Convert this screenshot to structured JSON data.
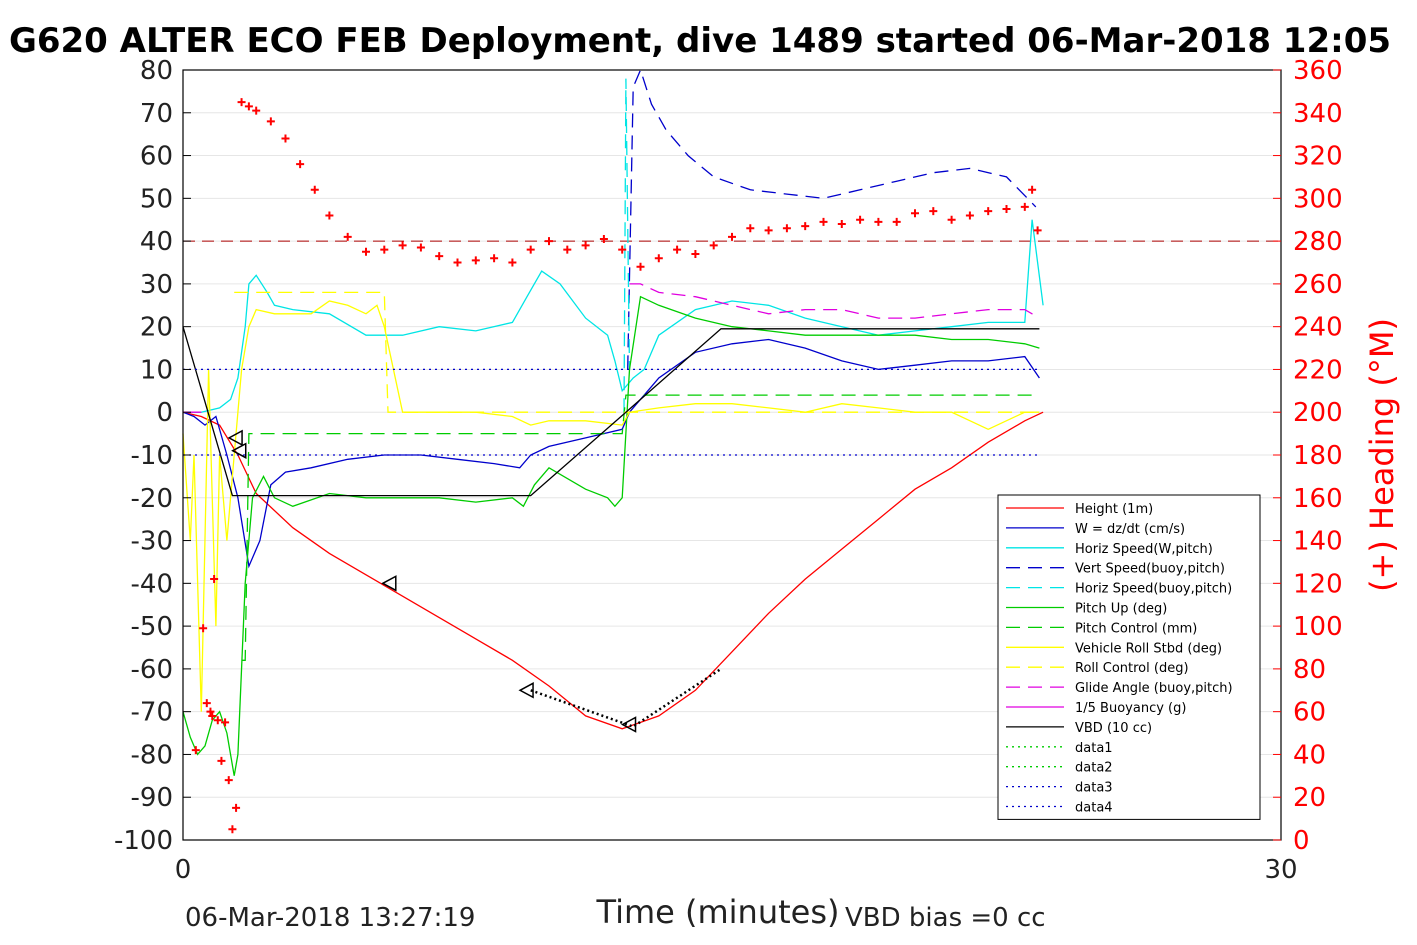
{
  "chart_data": {
    "type": "line",
    "title": "G620 ALTER ECO FEB Deployment, dive 1489 started 06-Mar-2018 12:05",
    "xlabel": "Time (minutes)",
    "ylabel_right": "(+) Heading (°M)",
    "xlim": [
      0,
      30
    ],
    "ylim_left": [
      -100,
      80
    ],
    "ylim_right": [
      0,
      360
    ],
    "x_ticks": [
      "0",
      "30"
    ],
    "y_ticks_left": [
      "80",
      "70",
      "60",
      "50",
      "40",
      "30",
      "20",
      "10",
      "0",
      "-10",
      "-20",
      "-30",
      "-40",
      "-50",
      "-60",
      "-70",
      "-80",
      "-90",
      "-100"
    ],
    "y_ticks_right": [
      "360",
      "340",
      "320",
      "300",
      "280",
      "260",
      "240",
      "220",
      "200",
      "180",
      "160",
      "140",
      "120",
      "100",
      "80",
      "60",
      "40",
      "20",
      "0"
    ],
    "footer_left": "06-Mar-2018 13:27:19",
    "footer_right": "VBD bias =0 cc",
    "colors": {
      "height": "#ff0000",
      "w": "#0000cc",
      "horiz": "#00e5e5",
      "pitch": "#00cc00",
      "roll": "#ffff00",
      "glide": "#e000e0",
      "vbd": "#000000",
      "heading": "#ff0000"
    },
    "legend": [
      {
        "label": "Height (1m)",
        "color": "#ff0000",
        "style": "solid"
      },
      {
        "label": "W = dz/dt (cm/s)",
        "color": "#0000cc",
        "style": "solid"
      },
      {
        "label": "Horiz Speed(W,pitch)",
        "color": "#00e5e5",
        "style": "solid"
      },
      {
        "label": "Vert Speed(buoy,pitch)",
        "color": "#0000cc",
        "style": "dashed"
      },
      {
        "label": "Horiz Speed(buoy,pitch)",
        "color": "#00e5e5",
        "style": "dashed"
      },
      {
        "label": "Pitch Up (deg)",
        "color": "#00cc00",
        "style": "solid"
      },
      {
        "label": "Pitch Control (mm)",
        "color": "#00cc00",
        "style": "dashed"
      },
      {
        "label": "Vehicle Roll Stbd (deg)",
        "color": "#ffff00",
        "style": "solid"
      },
      {
        "label": "Roll Control (deg)",
        "color": "#ffff00",
        "style": "dashed"
      },
      {
        "label": "Glide Angle (buoy,pitch)",
        "color": "#e000e0",
        "style": "dashed"
      },
      {
        "label": "1/5 Buoyancy (g)",
        "color": "#e000e0",
        "style": "solid"
      },
      {
        "label": "VBD (10 cc)",
        "color": "#000000",
        "style": "solid"
      },
      {
        "label": "data1",
        "color": "#00cc00",
        "style": "dotted"
      },
      {
        "label": "data2",
        "color": "#00cc00",
        "style": "dotted"
      },
      {
        "label": "data3",
        "color": "#0000cc",
        "style": "dotted"
      },
      {
        "label": "data4",
        "color": "#0000cc",
        "style": "dotted"
      }
    ],
    "series": [
      {
        "name": "Height (1m)",
        "x": [
          0,
          0.5,
          1,
          1.5,
          2,
          3,
          4,
          5,
          6,
          7,
          8,
          9,
          10,
          11,
          12,
          13,
          14,
          15,
          16,
          17,
          18,
          19,
          20,
          21,
          22,
          23,
          23.5
        ],
        "y": [
          0,
          -1,
          -3,
          -10,
          -19,
          -27,
          -33,
          -38,
          -43,
          -48,
          -53,
          -58,
          -64,
          -71,
          -74,
          -71,
          -65,
          -56,
          -47,
          -39,
          -32,
          -25,
          -18,
          -13,
          -7,
          -2,
          0
        ]
      },
      {
        "name": "W = dz/dt (cm/s)",
        "x": [
          0,
          0.3,
          0.6,
          0.9,
          1.2,
          1.5,
          1.8,
          2.1,
          2.4,
          2.8,
          3.5,
          4.5,
          5.5,
          6.5,
          7.5,
          8.5,
          9.2,
          9.5,
          10,
          11,
          12,
          12.2,
          12.6,
          13,
          14,
          15,
          16,
          17,
          18,
          19,
          20,
          21,
          22,
          23,
          23.4
        ],
        "y": [
          0,
          -1,
          -3,
          -1,
          -10,
          -20,
          -36,
          -30,
          -17,
          -14,
          -13,
          -11,
          -10,
          -10,
          -11,
          -12,
          -13,
          -10,
          -8,
          -6,
          -4,
          0,
          4,
          8,
          14,
          16,
          17,
          15,
          12,
          10,
          11,
          12,
          12,
          13,
          8
        ]
      },
      {
        "name": "Horiz Speed(W,pitch)",
        "x": [
          0,
          0.5,
          1,
          1.3,
          1.5,
          1.7,
          1.8,
          2,
          2.3,
          2.5,
          3,
          4,
          5,
          6,
          7,
          8,
          9,
          9.4,
          9.8,
          10.3,
          11,
          11.6,
          11.8,
          12,
          12.3,
          12.6,
          13,
          14,
          15,
          16,
          17,
          18,
          19,
          20,
          21,
          22,
          23,
          23.2,
          23.5
        ],
        "y": [
          0,
          0,
          1,
          3,
          8,
          20,
          30,
          32,
          28,
          25,
          24,
          23,
          18,
          18,
          20,
          19,
          21,
          27,
          33,
          30,
          22,
          18,
          12,
          5,
          8,
          10,
          18,
          24,
          26,
          25,
          22,
          20,
          18,
          19,
          20,
          21,
          21,
          45,
          25
        ]
      },
      {
        "name": "Vert Speed(buoy,pitch)",
        "x": [
          12.15,
          12.3,
          12.5,
          12.8,
          13.2,
          13.8,
          14.5,
          15.5,
          16.5,
          17.5,
          18.5,
          19.5,
          20.5,
          21.5,
          22.5,
          23.3
        ],
        "y": [
          10,
          76,
          80,
          72,
          66,
          60,
          55,
          52,
          51,
          50,
          52,
          54,
          56,
          57,
          55,
          48
        ]
      },
      {
        "name": "Horiz Speed(buoy,pitch)",
        "x": [
          12.05,
          12.1,
          12.2
        ],
        "y": [
          0,
          78,
          10
        ]
      },
      {
        "name": "Pitch Up (deg)",
        "x": [
          0,
          0.2,
          0.4,
          0.6,
          0.8,
          1,
          1.2,
          1.4,
          1.5,
          1.7,
          1.9,
          2.2,
          2.5,
          3,
          4,
          5,
          6,
          7,
          8,
          9,
          9.3,
          9.6,
          10,
          11,
          11.6,
          11.8,
          12,
          12.2,
          12.5,
          13,
          14,
          15,
          16,
          17,
          18,
          19,
          20,
          21,
          22,
          23,
          23.4
        ],
        "y": [
          -70,
          -76,
          -80,
          -78,
          -72,
          -70,
          -75,
          -85,
          -80,
          -40,
          -20,
          -15,
          -20,
          -22,
          -19,
          -20,
          -20,
          -20,
          -21,
          -20,
          -22,
          -17,
          -13,
          -18,
          -20,
          -22,
          -20,
          10,
          27,
          25,
          22,
          20,
          19,
          18,
          18,
          18,
          18,
          17,
          17,
          16,
          15
        ]
      },
      {
        "name": "Pitch Control (mm)",
        "x": [
          1.6,
          1.7,
          1.8,
          2,
          9.5,
          9.6,
          12,
          12.1,
          13,
          23.4
        ],
        "y": [
          -58,
          -58,
          -5,
          -5,
          -5,
          -5,
          -5,
          4,
          4,
          4
        ]
      },
      {
        "name": "Vehicle Roll Stbd (deg)",
        "x": [
          0,
          0.2,
          0.3,
          0.5,
          0.7,
          0.9,
          1,
          1.2,
          1.4,
          1.6,
          1.8,
          2,
          2.5,
          3,
          3.5,
          4,
          4.5,
          5,
          5.3,
          5.5,
          6,
          7,
          8,
          9,
          9.5,
          10,
          11,
          12,
          12.2,
          13,
          14,
          15,
          16,
          17,
          18,
          19,
          20,
          21,
          22,
          23,
          23.4
        ],
        "y": [
          -5,
          -30,
          -10,
          -70,
          10,
          -50,
          -10,
          -30,
          -10,
          10,
          20,
          24,
          23,
          23,
          23,
          26,
          25,
          23,
          25,
          20,
          0,
          0,
          0,
          -1,
          -3,
          -2,
          -2,
          -3,
          0,
          1,
          2,
          2,
          1,
          0,
          2,
          1,
          0,
          0,
          -4,
          0,
          0
        ]
      },
      {
        "name": "Roll Control (deg)",
        "x": [
          1.4,
          2,
          5.5,
          5.6,
          12,
          12.1,
          23.4
        ],
        "y": [
          28,
          28,
          28,
          0,
          0,
          0,
          0
        ]
      },
      {
        "name": "Glide Angle (buoy,pitch)",
        "x": [
          12.2,
          12.5,
          13,
          14,
          15,
          16,
          17,
          18,
          19,
          20,
          21,
          22,
          23,
          23.4
        ],
        "y": [
          30,
          30,
          28,
          27,
          25,
          23,
          24,
          24,
          22,
          22,
          23,
          24,
          24,
          22
        ]
      },
      {
        "name": "1/5 Buoyancy (g)",
        "x": [
          0,
          0.2,
          0.5
        ],
        "y": [
          0,
          0,
          0
        ]
      },
      {
        "name": "VBD (10 cc)",
        "x": [
          0,
          1.35,
          9.5,
          12.1,
          14.7,
          23.4
        ],
        "y": [
          20,
          -19.5,
          -19.5,
          0,
          19.5,
          19.5
        ]
      },
      {
        "name": "data1",
        "x": [],
        "y": []
      },
      {
        "name": "data2",
        "x": [],
        "y": []
      },
      {
        "name": "data3",
        "x": [
          0,
          23.4
        ],
        "y": [
          10,
          10
        ]
      },
      {
        "name": "data4",
        "x": [
          0,
          23.4
        ],
        "y": [
          -10,
          -10
        ]
      }
    ],
    "heading_points": {
      "x": [
        0.35,
        0.55,
        0.65,
        0.75,
        0.8,
        0.85,
        0.95,
        1.05,
        1.15,
        1.25,
        1.35,
        1.45,
        1.6,
        1.8,
        2,
        2.4,
        2.8,
        3.2,
        3.6,
        4,
        4.5,
        5,
        5.5,
        6,
        6.5,
        7,
        7.5,
        8,
        8.5,
        9,
        9.5,
        10,
        10.5,
        11,
        11.5,
        12,
        12.5,
        13,
        13.5,
        14,
        14.5,
        15,
        15.5,
        16,
        16.5,
        17,
        17.5,
        18,
        18.5,
        19,
        19.5,
        20,
        20.5,
        21,
        21.5,
        22,
        22.5,
        23,
        23.2,
        23.35
      ],
      "y": [
        42,
        99,
        64,
        60,
        58,
        122,
        56,
        37,
        55,
        28,
        5,
        15,
        345,
        343,
        341,
        336,
        328,
        316,
        304,
        292,
        282,
        275,
        276,
        278,
        277,
        273,
        270,
        271,
        272,
        270,
        276,
        280,
        276,
        278,
        281,
        276,
        268,
        272,
        276,
        274,
        278,
        282,
        286,
        285,
        286,
        287,
        289,
        288,
        290,
        289,
        289,
        293,
        294,
        290,
        292,
        294,
        295,
        296,
        304,
        285
      ]
    },
    "heading_mean": 280,
    "glider_markers": {
      "x": [
        1.45,
        1.55,
        5.65,
        9.4,
        12.2
      ],
      "y": [
        -6,
        -9,
        -40,
        -65,
        -73
      ]
    },
    "dotted_black": {
      "x": [
        9.5,
        12.3,
        14.7
      ],
      "y": [
        -65,
        -73.5,
        -60
      ]
    }
  }
}
